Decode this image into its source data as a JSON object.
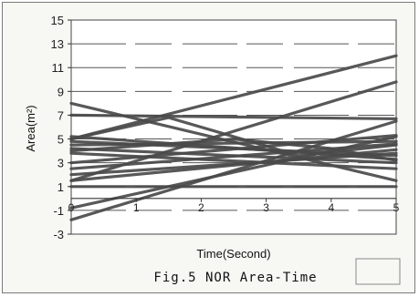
{
  "chart_data": {
    "type": "line",
    "title": "",
    "caption": "Fig.5 NOR Area-Time",
    "xlabel": "Time(Second)",
    "ylabel": "Area(m²)",
    "xlim": [
      0,
      5
    ],
    "ylim": [
      -3,
      15
    ],
    "xticks": [
      "0",
      "1",
      "2",
      "3",
      "4",
      "5"
    ],
    "yticks": [
      "-3",
      "-1",
      "1",
      "3",
      "5",
      "7",
      "9",
      "11",
      "13",
      "15"
    ],
    "grid": "horizontal dashed",
    "legend": "bottom-right (empty box)",
    "series_color": "#4a4a4a",
    "series": [
      {
        "x": [
          0,
          5
        ],
        "values": [
          5.0,
          12.0
        ]
      },
      {
        "x": [
          0,
          5
        ],
        "values": [
          1.5,
          9.8
        ]
      },
      {
        "x": [
          0,
          5
        ],
        "values": [
          -1.8,
          6.5
        ]
      },
      {
        "x": [
          0,
          5
        ],
        "values": [
          -0.8,
          5.2
        ]
      },
      {
        "x": [
          0,
          5
        ],
        "values": [
          8.0,
          1.5
        ]
      },
      {
        "x": [
          0,
          5
        ],
        "values": [
          7.0,
          6.7
        ]
      },
      {
        "x": [
          0,
          5
        ],
        "values": [
          5.2,
          3.3
        ]
      },
      {
        "x": [
          0,
          5
        ],
        "values": [
          4.8,
          3.6
        ]
      },
      {
        "x": [
          0,
          5
        ],
        "values": [
          4.5,
          4.8
        ]
      },
      {
        "x": [
          0,
          5
        ],
        "values": [
          4.2,
          3.0
        ]
      },
      {
        "x": [
          0,
          5
        ],
        "values": [
          3.0,
          5.3
        ]
      },
      {
        "x": [
          0,
          5
        ],
        "values": [
          2.5,
          4.6
        ]
      },
      {
        "x": [
          0,
          5
        ],
        "values": [
          2.0,
          3.8
        ]
      },
      {
        "x": [
          0,
          5
        ],
        "values": [
          1.5,
          4.1
        ]
      },
      {
        "x": [
          0,
          5
        ],
        "values": [
          3.8,
          2.5
        ]
      },
      {
        "x": [
          0,
          5
        ],
        "values": [
          1.0,
          1.0
        ]
      },
      {
        "x": [
          0,
          1.5,
          3.5,
          5
        ],
        "values": [
          5.0,
          6.8,
          3.6,
          4.5
        ]
      },
      {
        "x": [
          0,
          2.5,
          4,
          5
        ],
        "values": [
          4.0,
          5.0,
          4.2,
          3.2
        ]
      }
    ]
  }
}
